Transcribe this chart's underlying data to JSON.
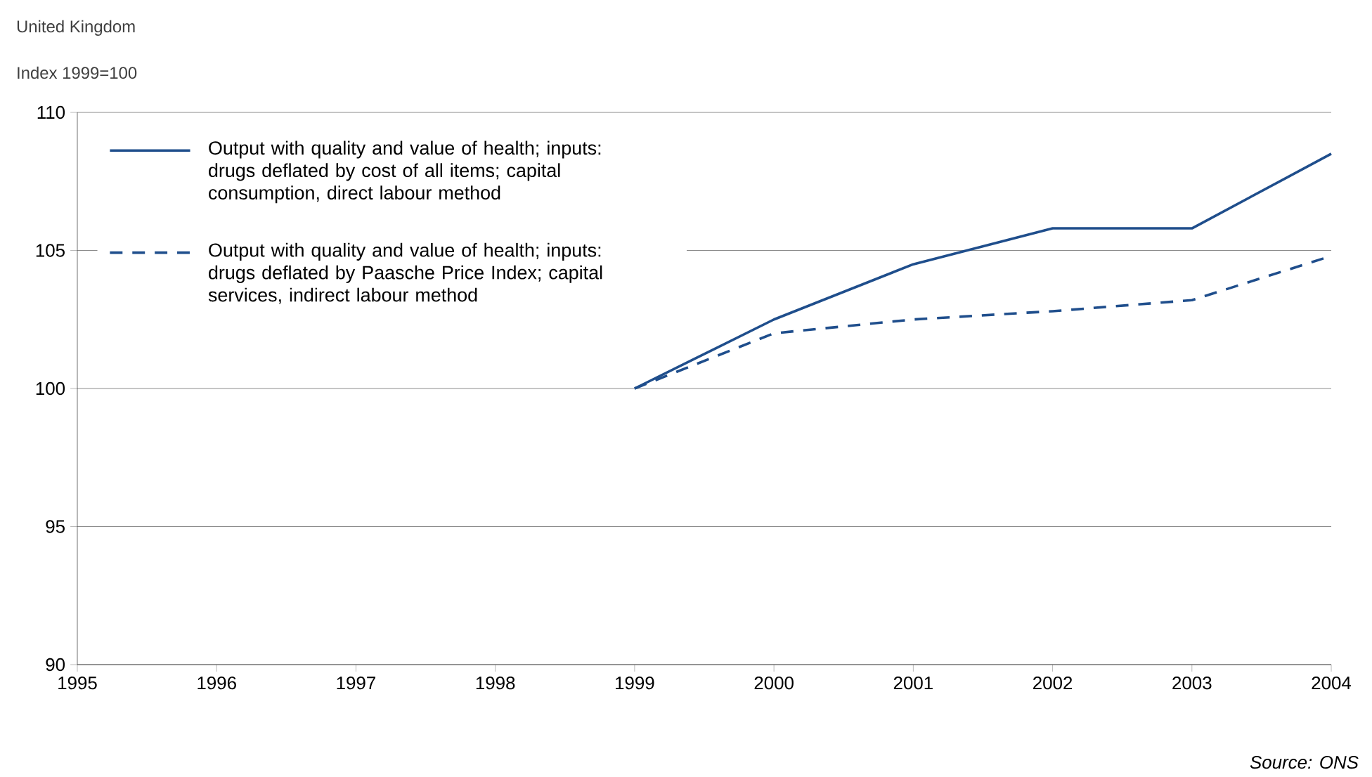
{
  "chart_data": {
    "type": "line",
    "title": "United Kingdom",
    "ylabel": "Index 1999=100",
    "xlim": [
      1995,
      2004
    ],
    "xticks": [
      1995,
      1996,
      1997,
      1998,
      1999,
      2000,
      2001,
      2002,
      2003,
      2004
    ],
    "ylim": [
      90,
      110
    ],
    "yticks": [
      90,
      95,
      100,
      105,
      110
    ],
    "grid": "y",
    "legend": "top left",
    "annotations": [
      "Source: ONS"
    ],
    "series": [
      {
        "name": "Output with quality and value of health; inputs: drugs deflated by cost of all items; capital consumption, direct labour method",
        "color": "#1f4e8c",
        "line_style": "solid",
        "x": [
          1999,
          2000,
          2001,
          2002,
          2003,
          2004
        ],
        "values": [
          100,
          102.5,
          104.5,
          105.8,
          105.8,
          108.5
        ]
      },
      {
        "name": "Output with quality and value of health; inputs: drugs deflated by Paasche Price Index; capital services, indirect labour method",
        "color": "#1f4e8c",
        "line_style": "dashed",
        "x": [
          1999,
          2000,
          2001,
          2002,
          2003,
          2004
        ],
        "values": [
          100,
          102.0,
          102.5,
          102.8,
          103.2,
          104.8
        ]
      }
    ]
  }
}
